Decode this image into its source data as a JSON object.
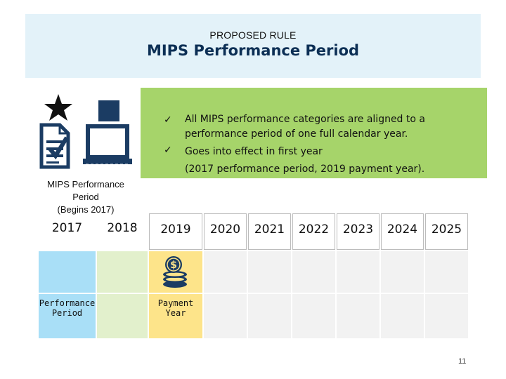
{
  "header": {
    "pre_title": "PROPOSED RULE",
    "title": "MIPS Performance Period"
  },
  "bullets": [
    {
      "check": "✓",
      "lines": [
        "All MIPS performance categories are aligned to a",
        "performance period of one full calendar year."
      ]
    },
    {
      "check": "✓",
      "lines": [
        "Goes into effect in first year",
        "(2017 performance period, 2019 payment year)."
      ]
    }
  ],
  "icons": [
    "star-icon",
    "document-check-icon",
    "calendar-square-icon",
    "laptop-icon",
    "coins-icon"
  ],
  "mips_label": {
    "lines": [
      "MIPS Performance",
      "Period",
      "(Begins 2017)"
    ]
  },
  "timeline": {
    "years": [
      "2017",
      "2018",
      "2019",
      "2020",
      "2021",
      "2022",
      "2023",
      "2024",
      "2025"
    ],
    "performance_label": [
      "Performance",
      "Period"
    ],
    "payment_label": [
      "Payment",
      "Year"
    ]
  },
  "colors": {
    "title_band": "#e3f2f9",
    "title_text": "#0c2f55",
    "green_box": "#a6d46a",
    "performance_blue": "#a9dff7",
    "light_green": "#e2f0cc",
    "payment_yellow": "#fde48a",
    "gray_cell": "#f2f2f2",
    "icon_navy": "#1b3c63"
  },
  "footer": {
    "page_number": "11"
  }
}
